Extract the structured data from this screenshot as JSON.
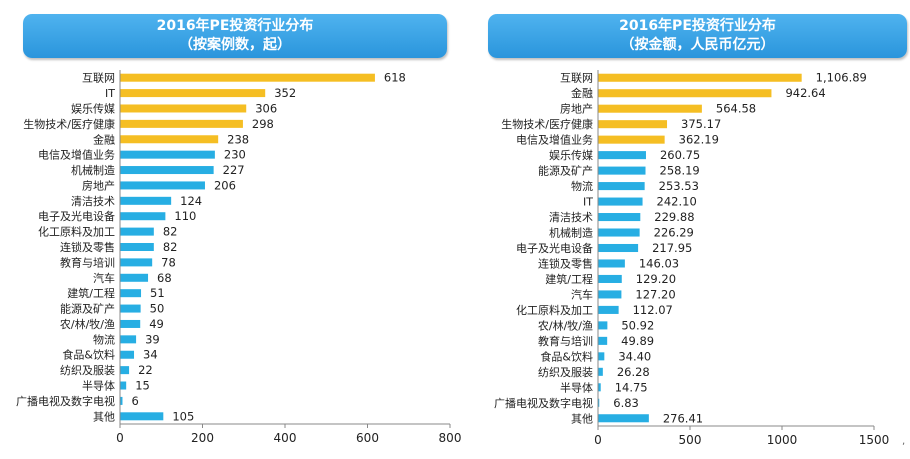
{
  "colors": {
    "top": "#f5be23",
    "rest": "#27aee3",
    "axis": "#888888"
  },
  "charts": [
    {
      "title": "2016年PE投资行业分布",
      "subtitle": "（按案例数，起）",
      "chart_data": {
        "type": "bar",
        "orientation": "horizontal",
        "categories": [
          "互联网",
          "IT",
          "娱乐传媒",
          "生物技术/医疗健康",
          "金融",
          "电信及增值业务",
          "机械制造",
          "房地产",
          "清洁技术",
          "电子及光电设备",
          "化工原料及加工",
          "连锁及零售",
          "教育与培训",
          "汽车",
          "建筑/工程",
          "能源及矿产",
          "农/林/牧/渔",
          "物流",
          "食品&饮料",
          "纺织及服装",
          "半导体",
          "广播电视及数字电视",
          "其他"
        ],
        "values": [
          618,
          352,
          306,
          298,
          238,
          230,
          227,
          206,
          124,
          110,
          82,
          82,
          78,
          68,
          51,
          50,
          49,
          39,
          34,
          22,
          15,
          6,
          105
        ],
        "labels": [
          "618",
          "352",
          "306",
          "298",
          "238",
          "230",
          "227",
          "206",
          "124",
          "110",
          "82",
          "82",
          "78",
          "68",
          "51",
          "50",
          "49",
          "39",
          "34",
          "22",
          "15",
          "6",
          "105"
        ],
        "highlight_count": 5,
        "xlim": [
          0,
          800
        ],
        "ticks": [
          "0",
          "200",
          "400",
          "600",
          "800"
        ],
        "tick_values": [
          0,
          200,
          400,
          600,
          800
        ]
      }
    },
    {
      "title": "2016年PE投资行业分布",
      "subtitle": "（按金额，人民币亿元）",
      "chart_data": {
        "type": "bar",
        "orientation": "horizontal",
        "categories": [
          "互联网",
          "金融",
          "房地产",
          "生物技术/医疗健康",
          "电信及增值业务",
          "娱乐传媒",
          "能源及矿产",
          "物流",
          "IT",
          "清洁技术",
          "机械制造",
          "电子及光电设备",
          "连锁及零售",
          "建筑/工程",
          "汽车",
          "化工原料及加工",
          "农/林/牧/渔",
          "教育与培训",
          "食品&饮料",
          "纺织及服装",
          "半导体",
          "广播电视及数字电视",
          "其他"
        ],
        "values": [
          1106.89,
          942.64,
          564.58,
          375.17,
          362.19,
          260.75,
          258.19,
          253.53,
          242.1,
          229.88,
          226.29,
          217.95,
          146.03,
          129.2,
          127.2,
          112.07,
          50.92,
          49.89,
          34.4,
          26.28,
          14.75,
          6.83,
          276.41
        ],
        "labels": [
          "1,106.89",
          "942.64",
          "564.58",
          "375.17",
          "362.19",
          "260.75",
          "258.19",
          "253.53",
          "242.10",
          "229.88",
          "226.29",
          "217.95",
          "146.03",
          "129.20",
          "127.20",
          "112.07",
          "50.92",
          "49.89",
          "34.40",
          "26.28",
          "14.75",
          "6.83",
          "276.41"
        ],
        "highlight_count": 5,
        "xlim": [
          0,
          1500
        ],
        "ticks": [
          "0",
          "500",
          "1000",
          "1500"
        ],
        "tick_values": [
          0,
          500,
          1000,
          1500
        ]
      }
    }
  ],
  "corner_mark": ","
}
